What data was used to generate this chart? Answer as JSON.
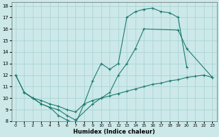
{
  "xlabel": "Humidex (Indice chaleur)",
  "bg_color": "#cce8e8",
  "grid_color": "#aad4d4",
  "line_color": "#1a7a6e",
  "xlim": [
    -0.5,
    23.5
  ],
  "ylim": [
    8,
    18.3
  ],
  "xticks": [
    0,
    1,
    2,
    3,
    4,
    5,
    6,
    7,
    8,
    9,
    10,
    11,
    12,
    13,
    14,
    15,
    16,
    17,
    18,
    19,
    20,
    21,
    22,
    23
  ],
  "yticks": [
    8,
    9,
    10,
    11,
    12,
    13,
    14,
    15,
    16,
    17,
    18
  ],
  "line1_x": [
    0,
    1,
    2,
    3,
    4,
    5,
    6,
    7,
    8,
    9,
    10,
    11,
    12,
    13,
    14,
    15,
    16,
    17,
    18,
    19,
    20
  ],
  "line1_y": [
    12,
    10.5,
    10,
    9.5,
    9.2,
    8.5,
    8.1,
    7.8,
    9.5,
    11.5,
    13.0,
    12.5,
    13.0,
    17.0,
    17.5,
    17.7,
    17.8,
    17.5,
    17.4,
    17.0,
    12.7
  ],
  "line2_x": [
    0,
    1,
    2,
    3,
    4,
    5,
    6,
    7,
    9,
    10,
    11,
    12,
    13,
    14,
    15,
    19,
    20,
    23
  ],
  "line2_y": [
    12,
    10.5,
    10,
    9.5,
    9.2,
    9.0,
    8.5,
    8.1,
    9.5,
    10.0,
    10.5,
    12.0,
    13.0,
    14.3,
    16.0,
    15.9,
    14.3,
    11.8
  ],
  "line3_x": [
    1,
    2,
    3,
    4,
    5,
    6,
    7,
    8,
    9,
    10,
    11,
    12,
    13,
    14,
    15,
    16,
    17,
    18,
    19,
    20,
    21,
    22,
    23
  ],
  "line3_y": [
    10.5,
    10.0,
    9.8,
    9.5,
    9.3,
    9.0,
    8.8,
    9.5,
    9.8,
    10.0,
    10.2,
    10.4,
    10.6,
    10.8,
    11.0,
    11.2,
    11.3,
    11.5,
    11.6,
    11.8,
    11.9,
    12.0,
    11.8
  ]
}
